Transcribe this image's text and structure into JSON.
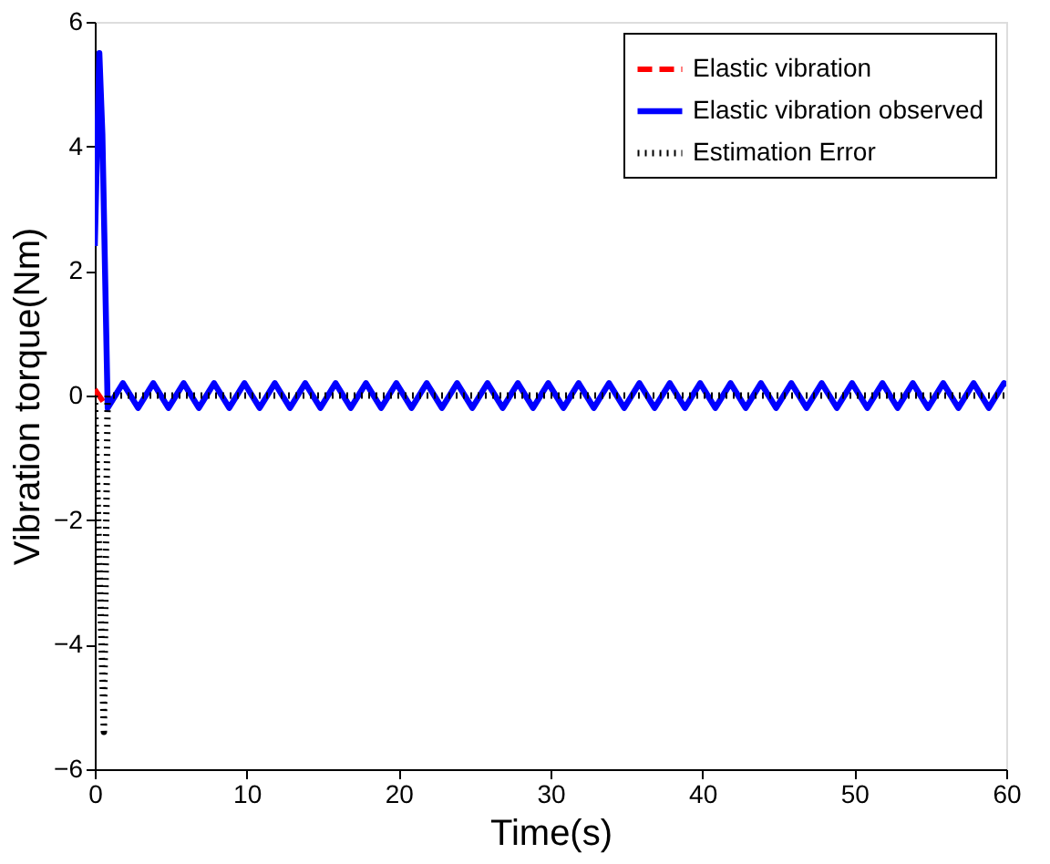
{
  "chart_data": {
    "type": "line",
    "xlabel": "Time(s)",
    "ylabel": "Vibration torque(Nm)",
    "xlim": [
      0,
      60
    ],
    "xticks": [
      0,
      10,
      20,
      30,
      40,
      50,
      60
    ],
    "ylim": [
      -6,
      6
    ],
    "yticks": [
      -6,
      -4,
      -2,
      0,
      2,
      4,
      6
    ],
    "grid": false,
    "legend": "top right",
    "series": [
      {
        "name": "Elastic vibration",
        "color": "#ff0000",
        "line_style": "dashed",
        "x": [
          0,
          0.7
        ],
        "values": [
          0.1,
          -0.15
        ]
      },
      {
        "name": "Elastic vibration observed",
        "color": "#0000ff",
        "line_style": "solid",
        "x": [
          0,
          0.3,
          0.5,
          0.85,
          1.35,
          1.85,
          2.35,
          2.85,
          3.35,
          3.85,
          4.35,
          4.85,
          5.35,
          5.85,
          6.35,
          6.85,
          7.35,
          7.85,
          8.35,
          8.85,
          9.35,
          9.85,
          10.35,
          10.85,
          11.35,
          11.85,
          12.35,
          12.85,
          13.35,
          13.85,
          14.35,
          14.85,
          15.35,
          15.85,
          16.35,
          16.85,
          17.35,
          17.85,
          18.35,
          18.85,
          19.35,
          19.85,
          20.35,
          20.85,
          21.35,
          21.85,
          22.35,
          22.85,
          23.35,
          23.85,
          24.35,
          24.85,
          25.35,
          25.85,
          26.35,
          26.85,
          27.35,
          27.85,
          28.35,
          28.85,
          29.35,
          29.85,
          30.35,
          30.85,
          31.35,
          31.85,
          32.35,
          32.85,
          33.35,
          33.85,
          34.35,
          34.85,
          35.35,
          35.85,
          36.35,
          36.85,
          37.35,
          37.85,
          38.35,
          38.85,
          39.35,
          39.85,
          40.35,
          40.85,
          41.35,
          41.85,
          42.35,
          42.85,
          43.35,
          43.85,
          44.35,
          44.85,
          45.35,
          45.85,
          46.35,
          46.85,
          47.35,
          47.85,
          48.35,
          48.85,
          49.35,
          49.85,
          50.35,
          50.85,
          51.35,
          51.85,
          52.35,
          52.85,
          53.35,
          53.85,
          54.35,
          54.85,
          55.35,
          55.85,
          56.35,
          56.85,
          57.35,
          57.85,
          58.35,
          58.85,
          59.35,
          59.85,
          60
        ],
        "values": [
          2.4,
          5.5,
          4.2,
          -0.2,
          0,
          0.2,
          0,
          -0.2,
          0,
          0.2,
          0,
          -0.2,
          0,
          0.2,
          0,
          -0.2,
          0,
          0.2,
          0,
          -0.2,
          0,
          0.2,
          0,
          -0.2,
          0,
          0.2,
          0,
          -0.2,
          0,
          0.2,
          0,
          -0.2,
          0,
          0.2,
          0,
          -0.2,
          0,
          0.2,
          0,
          -0.2,
          0,
          0.2,
          0,
          -0.2,
          0,
          0.2,
          0,
          -0.2,
          0,
          0.2,
          0,
          -0.2,
          0,
          0.2,
          0,
          -0.2,
          0,
          0.2,
          0,
          -0.2,
          0,
          0.2,
          0,
          -0.2,
          0,
          0.2,
          0,
          -0.2,
          0,
          0.2,
          0,
          -0.2,
          0,
          0.2,
          0,
          -0.2,
          0,
          0.2,
          0,
          -0.2,
          0,
          0.2,
          0,
          -0.2,
          0,
          0.2,
          0,
          -0.2,
          0,
          0.2,
          0,
          -0.2,
          0,
          0.2,
          0,
          -0.2,
          0,
          0.2,
          0,
          -0.2,
          0,
          0.2,
          0,
          -0.2,
          0,
          0.2,
          0,
          -0.2,
          0,
          0.2,
          0,
          -0.2,
          0,
          0.2,
          0,
          -0.2,
          0,
          0.2,
          0,
          -0.2,
          0,
          0.2,
          0.15
        ]
      },
      {
        "name": "Estimation Error",
        "color": "#000000",
        "line_style": "dotted",
        "x": [
          0,
          0.6,
          0.85,
          60
        ],
        "values": [
          0,
          -5.4,
          0,
          0
        ]
      }
    ]
  }
}
